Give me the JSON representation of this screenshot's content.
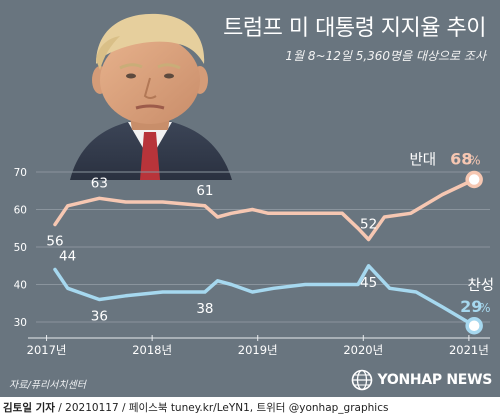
{
  "title": "트럼프 미 대통령 지지율 추이",
  "subtitle": "1월 8~12일 5,360명을 대상으로 조사",
  "source": "자료/퓨리서치센터",
  "watermark": "YONHAP NEWS",
  "footer": {
    "author": "김토일 기자",
    "details": " / 20210117 / 페이스북 tuney.kr/LeYN1, 트위터 @yonhap_graphics"
  },
  "colors": {
    "background": "#69757f",
    "approve": "#a6d8ef",
    "disapprove": "#f6c7b2",
    "grid": "#8a949d",
    "text": "#ffffff"
  },
  "icons": {
    "portrait": "portrait-photo",
    "watermark": "yonhap-globe-icon"
  },
  "chart_data": {
    "type": "line",
    "xlabel": "",
    "ylabel": "",
    "ylim": [
      30,
      70
    ],
    "yticks": [
      30,
      40,
      50,
      60,
      70
    ],
    "xticks": [
      {
        "x": 2017,
        "label": "2017년"
      },
      {
        "x": 2018,
        "label": "2018년"
      },
      {
        "x": 2019,
        "label": "2019년"
      },
      {
        "x": 2020,
        "label": "2020년"
      },
      {
        "x": 2021,
        "label": "2021년"
      }
    ],
    "xlim": [
      2016.9,
      2021.2
    ],
    "grid": true,
    "series": [
      {
        "name": "반대",
        "points": [
          [
            2017.08,
            56
          ],
          [
            2017.2,
            61
          ],
          [
            2017.5,
            63
          ],
          [
            2017.75,
            62
          ],
          [
            2018.1,
            62
          ],
          [
            2018.5,
            61
          ],
          [
            2018.62,
            58
          ],
          [
            2018.75,
            59
          ],
          [
            2018.95,
            60
          ],
          [
            2019.1,
            59
          ],
          [
            2019.5,
            59
          ],
          [
            2019.8,
            59
          ],
          [
            2019.95,
            55
          ],
          [
            2020.05,
            52
          ],
          [
            2020.2,
            58
          ],
          [
            2020.45,
            59
          ],
          [
            2020.75,
            64
          ],
          [
            2021.05,
            68
          ]
        ],
        "labels": [
          {
            "value": "56",
            "x": 2017.08,
            "y": 56,
            "pos": "below"
          },
          {
            "value": "63",
            "x": 2017.5,
            "y": 63,
            "pos": "above"
          },
          {
            "value": "61",
            "x": 2018.5,
            "y": 61,
            "pos": "above"
          },
          {
            "value": "52",
            "x": 2020.05,
            "y": 52,
            "pos": "above"
          }
        ],
        "end_label": "68",
        "end_unit": "%"
      },
      {
        "name": "찬성",
        "points": [
          [
            2017.08,
            44
          ],
          [
            2017.2,
            39
          ],
          [
            2017.5,
            36
          ],
          [
            2017.75,
            37
          ],
          [
            2018.1,
            38
          ],
          [
            2018.5,
            38
          ],
          [
            2018.62,
            41
          ],
          [
            2018.75,
            40
          ],
          [
            2018.95,
            38
          ],
          [
            2019.15,
            39
          ],
          [
            2019.45,
            40
          ],
          [
            2019.8,
            40
          ],
          [
            2019.95,
            40
          ],
          [
            2020.05,
            45
          ],
          [
            2020.25,
            39
          ],
          [
            2020.5,
            38
          ],
          [
            2020.75,
            34
          ],
          [
            2021.05,
            29
          ]
        ],
        "labels": [
          {
            "value": "44",
            "x": 2017.08,
            "y": 44,
            "pos": "above-right"
          },
          {
            "value": "36",
            "x": 2017.5,
            "y": 36,
            "pos": "below"
          },
          {
            "value": "38",
            "x": 2018.5,
            "y": 38,
            "pos": "below"
          },
          {
            "value": "45",
            "x": 2020.05,
            "y": 45,
            "pos": "below"
          }
        ],
        "end_label": "29",
        "end_unit": "%"
      }
    ]
  }
}
